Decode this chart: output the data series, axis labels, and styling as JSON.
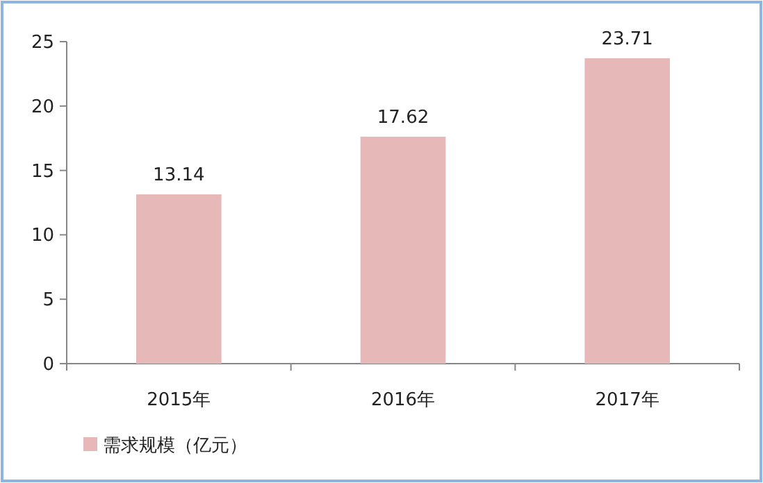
{
  "chart_data": {
    "type": "bar",
    "categories": [
      "2015年",
      "2016年",
      "2017年"
    ],
    "series": [
      {
        "name": "需求规模（亿元）",
        "color": "#e6b9b8",
        "values": [
          13.14,
          17.62,
          23.71
        ]
      }
    ],
    "ylim": [
      0,
      25
    ],
    "yticks": [
      0,
      5,
      10,
      15,
      20,
      25
    ],
    "data_labels": true,
    "legend": "bottom left",
    "grid": false
  }
}
